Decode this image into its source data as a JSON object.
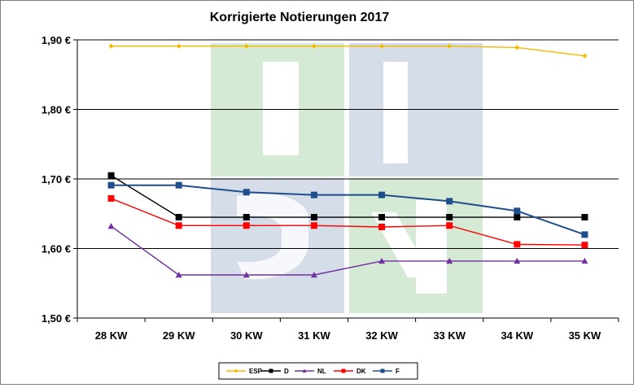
{
  "chart_data": {
    "type": "line",
    "title": "Korrigierte Notierungen 2017",
    "xlabel": "",
    "ylabel": "",
    "categories": [
      "28 KW",
      "29 KW",
      "30 KW",
      "31 KW",
      "32 KW",
      "33 KW",
      "34 KW",
      "35 KW"
    ],
    "ylim": [
      1.5,
      1.9
    ],
    "yticks": [
      1.5,
      1.6,
      1.7,
      1.8,
      1.9
    ],
    "ytick_labels": [
      "1,50 €",
      "1,60 €",
      "1,70 €",
      "1,80 €",
      "1,90 €"
    ],
    "grid": true,
    "legend_position": "bottom",
    "series": [
      {
        "name": "ESP",
        "color": "#f5b800",
        "marker": "diamond",
        "values": [
          1.891,
          1.891,
          1.891,
          1.891,
          1.891,
          1.891,
          1.889,
          1.877
        ]
      },
      {
        "name": "D",
        "color": "#000000",
        "marker": "square",
        "values": [
          1.705,
          1.645,
          1.645,
          1.645,
          1.645,
          1.645,
          1.645,
          1.645
        ]
      },
      {
        "name": "NL",
        "color": "#7030a0",
        "marker": "triangle",
        "values": [
          1.632,
          1.562,
          1.562,
          1.562,
          1.582,
          1.582,
          1.582,
          1.582
        ]
      },
      {
        "name": "DK",
        "color": "#ff0000",
        "marker": "square",
        "values": [
          1.672,
          1.633,
          1.633,
          1.633,
          1.631,
          1.633,
          1.606,
          1.605
        ]
      },
      {
        "name": "F",
        "color": "#1f4e8c",
        "marker": "square",
        "values": [
          1.691,
          1.691,
          1.681,
          1.677,
          1.677,
          1.668,
          1.654,
          1.62
        ]
      }
    ]
  },
  "watermark": {
    "colors": {
      "green": "#d5ead5",
      "blue": "#d5dde8"
    }
  }
}
